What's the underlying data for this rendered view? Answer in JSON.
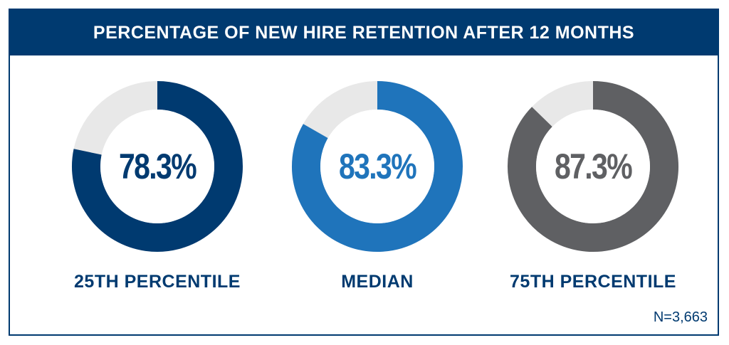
{
  "title": "PERCENTAGE OF NEW HIRE RETENTION AFTER 12 MONTHS",
  "footnote": "N=3,663",
  "colors": {
    "navy": "#003a70",
    "blue": "#1f74bb",
    "gray": "#5f6063",
    "track": "#e8e8e8"
  },
  "chart_data": {
    "type": "pie",
    "title": "PERCENTAGE OF NEW HIRE RETENTION AFTER 12 MONTHS",
    "categories": [
      "25TH PERCENTILE",
      "MEDIAN",
      "75TH PERCENTILE"
    ],
    "values": [
      78.3,
      83.3,
      87.3
    ],
    "value_labels": [
      "78.3%",
      "83.3%",
      "87.3%"
    ],
    "colors": [
      "#003a70",
      "#1f74bb",
      "#5f6063"
    ],
    "max": 100
  }
}
